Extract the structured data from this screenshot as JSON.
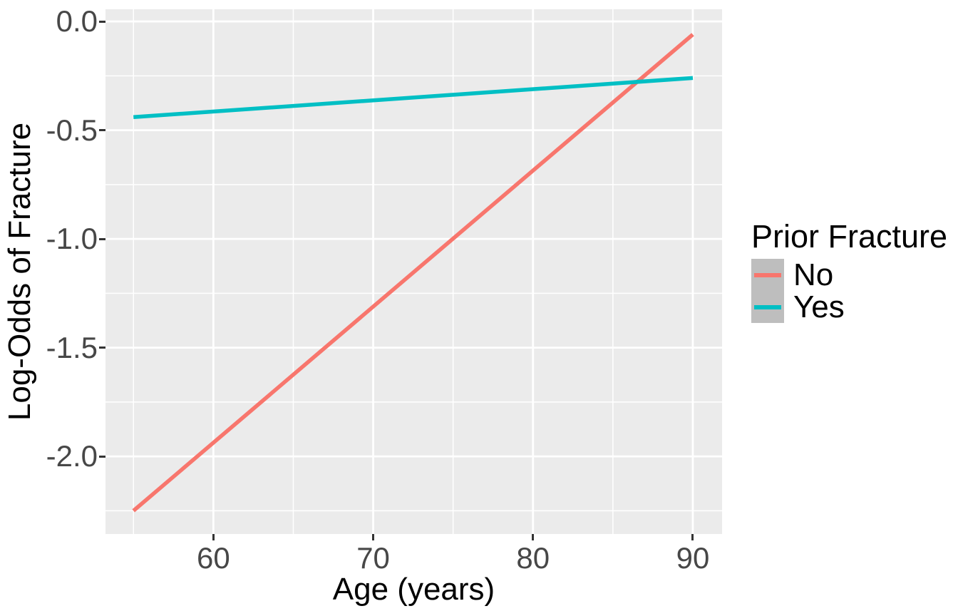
{
  "chart_data": {
    "type": "line",
    "title": "",
    "xlabel": "Age (years)",
    "ylabel": "Log-Odds of Fracture",
    "xlim": [
      53.25,
      91.83
    ],
    "ylim": [
      -2.357,
      0.056
    ],
    "x_major_ticks": [
      60,
      70,
      80,
      90
    ],
    "x_tick_labels": [
      "60",
      "70",
      "80",
      "90"
    ],
    "x_minor_ticks": [
      55,
      65,
      75,
      85
    ],
    "y_major_ticks": [
      0.0,
      -0.5,
      -1.0,
      -1.5,
      -2.0
    ],
    "y_tick_labels": [
      "0.0",
      "-0.5",
      "-1.0",
      "-1.5",
      "-2.0"
    ],
    "y_minor_ticks": [
      -0.25,
      -0.75,
      -1.25,
      -1.75,
      -2.25
    ],
    "series": [
      {
        "name": "No",
        "color": "#F8766D",
        "x": [
          55,
          90
        ],
        "y": [
          -2.25,
          -0.06
        ]
      },
      {
        "name": "Yes",
        "color": "#00BFC4",
        "x": [
          55,
          90
        ],
        "y": [
          -0.44,
          -0.26
        ]
      }
    ],
    "legend": {
      "title": "Prior Fracture",
      "position": "right",
      "key_fill": "#BEBEBE"
    },
    "style": {
      "panel_bg": "#EBEBEB",
      "grid_major_color": "#FFFFFF",
      "grid_minor_color": "#FFFFFF",
      "tick_color": "#333333",
      "tick_label_color": "#474747",
      "title_color": "#000000"
    }
  }
}
